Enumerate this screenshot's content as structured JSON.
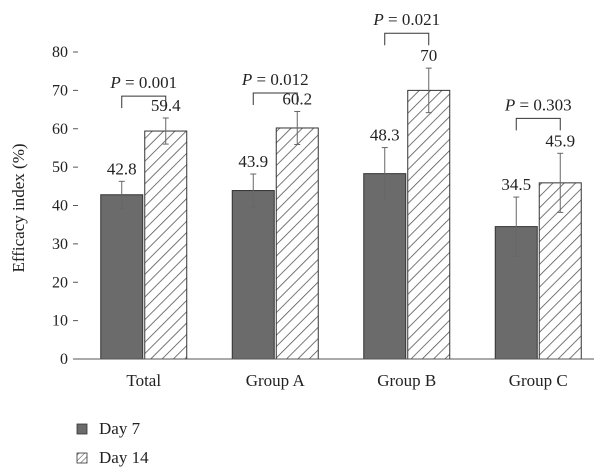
{
  "chart_data": {
    "type": "bar",
    "categories": [
      "Total",
      "Group A",
      "Group B",
      "Group C"
    ],
    "series": [
      {
        "name": "Day 7",
        "values": [
          42.8,
          43.9,
          48.3,
          34.5
        ],
        "error_low": [
          39.3,
          39.6,
          41.5,
          26.8
        ],
        "error_high": [
          46.3,
          48.2,
          55.1,
          42.2
        ],
        "labels": [
          "42.8",
          "43.9",
          "48.3",
          "34.5"
        ],
        "color": "#6b6b6b",
        "pattern": "solid"
      },
      {
        "name": "Day 14",
        "values": [
          59.4,
          60.2,
          70,
          45.9
        ],
        "error_low": [
          56.0,
          55.9,
          64.2,
          38.2
        ],
        "error_high": [
          62.8,
          64.5,
          75.8,
          53.6
        ],
        "labels": [
          "59.4",
          "60.2",
          "70",
          "45.9"
        ],
        "color": "#ffffff",
        "pattern": "diagonal-hatch"
      }
    ],
    "p_values": [
      {
        "italic": "P",
        "text": " = 0.001",
        "bracket_y": 68.5
      },
      {
        "italic": "P",
        "text": " = 0.012",
        "bracket_y": 69.3
      },
      {
        "italic": "P",
        "text": " = 0.021",
        "bracket_y": 84.9
      },
      {
        "italic": "P",
        "text": " = 0.303",
        "bracket_y": 62.7
      }
    ],
    "title": "",
    "xlabel": "",
    "ylabel": "Efficacy index (%)",
    "ylim": [
      0,
      80
    ],
    "yticks": [
      0,
      10,
      20,
      30,
      40,
      50,
      60,
      70,
      80
    ],
    "grid": false,
    "legend_position": "bottom-left"
  }
}
